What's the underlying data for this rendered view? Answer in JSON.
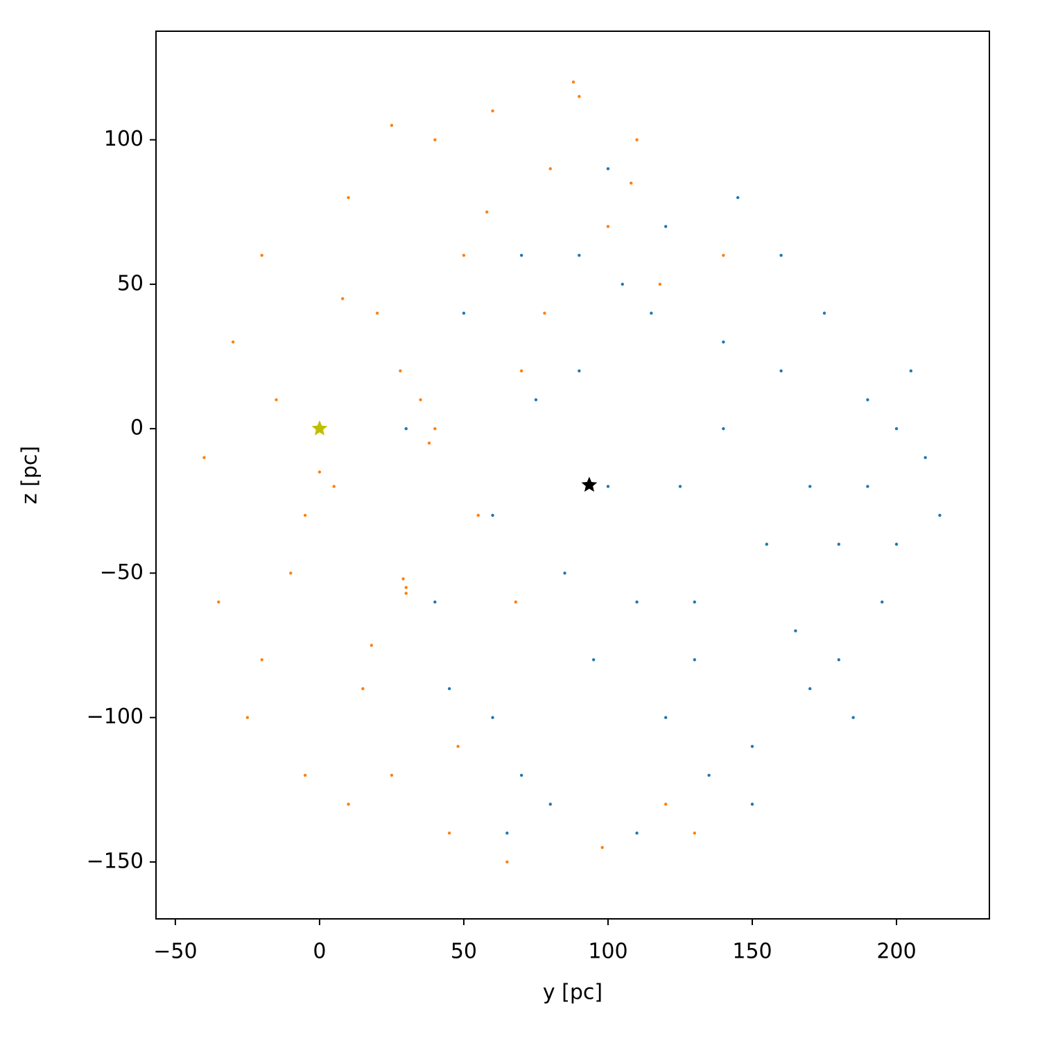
{
  "chart_data": {
    "type": "scatter",
    "xlabel": "y [pc]",
    "ylabel": "z [pc]",
    "xlim": [
      -56.7,
      232.2
    ],
    "ylim": [
      -169.7,
      137.6
    ],
    "xticks": [
      {
        "value": -50,
        "label": "−50"
      },
      0,
      50,
      100,
      150,
      200
    ],
    "yticks": [
      {
        "value": -150,
        "label": "−150"
      },
      {
        "value": -100,
        "label": "−100"
      },
      {
        "value": -50,
        "label": "−50"
      },
      0,
      50,
      100
    ],
    "series": [
      {
        "color": "#1f77b4",
        "marker": "dot",
        "x": [
          30,
          40,
          50,
          60,
          70,
          80,
          90,
          100,
          110,
          120,
          130,
          140,
          150,
          160,
          170,
          180,
          190,
          200,
          210,
          215,
          60,
          75,
          95,
          115,
          135,
          155,
          175,
          195,
          205,
          185,
          165,
          145,
          125,
          105,
          85,
          65,
          45,
          100,
          120,
          140,
          160,
          180,
          200,
          150,
          130,
          110,
          90,
          70,
          170,
          190
        ],
        "values": [
          0,
          -60,
          40,
          -100,
          60,
          -130,
          20,
          -20,
          -140,
          70,
          -60,
          30,
          -110,
          60,
          -20,
          -80,
          10,
          -40,
          -10,
          -30,
          -30,
          10,
          -80,
          40,
          -120,
          -40,
          40,
          -60,
          20,
          -100,
          -70,
          80,
          -20,
          50,
          -50,
          -140,
          -90,
          90,
          -100,
          0,
          20,
          -40,
          0,
          -130,
          -80,
          -60,
          60,
          -120,
          -90,
          -20
        ]
      },
      {
        "color": "#ff7f0e",
        "marker": "dot",
        "x": [
          -40,
          -30,
          -20,
          -10,
          0,
          5,
          10,
          15,
          20,
          25,
          30,
          35,
          40,
          45,
          50,
          55,
          60,
          65,
          70,
          80,
          90,
          100,
          110,
          120,
          -35,
          -25,
          -15,
          -5,
          0,
          8,
          18,
          28,
          29,
          30,
          38,
          48,
          58,
          68,
          78,
          88,
          98,
          108,
          118,
          130,
          140,
          -20,
          -5,
          10,
          25,
          40
        ],
        "values": [
          -10,
          30,
          60,
          -50,
          -15,
          -20,
          80,
          -90,
          40,
          -120,
          -55,
          10,
          100,
          -140,
          60,
          -30,
          110,
          -150,
          20,
          90,
          115,
          70,
          100,
          -130,
          -60,
          -100,
          10,
          -30,
          0,
          45,
          -75,
          20,
          -52,
          -57,
          -5,
          -110,
          75,
          -60,
          40,
          120,
          -145,
          85,
          50,
          -140,
          60,
          -80,
          -120,
          -130,
          105,
          0
        ]
      },
      {
        "color": "#bfbf00",
        "marker": "star",
        "x": [
          0
        ],
        "values": [
          0
        ]
      },
      {
        "color": "#000000",
        "marker": "star",
        "x": [
          93.5
        ],
        "values": [
          -19.5
        ]
      }
    ]
  }
}
